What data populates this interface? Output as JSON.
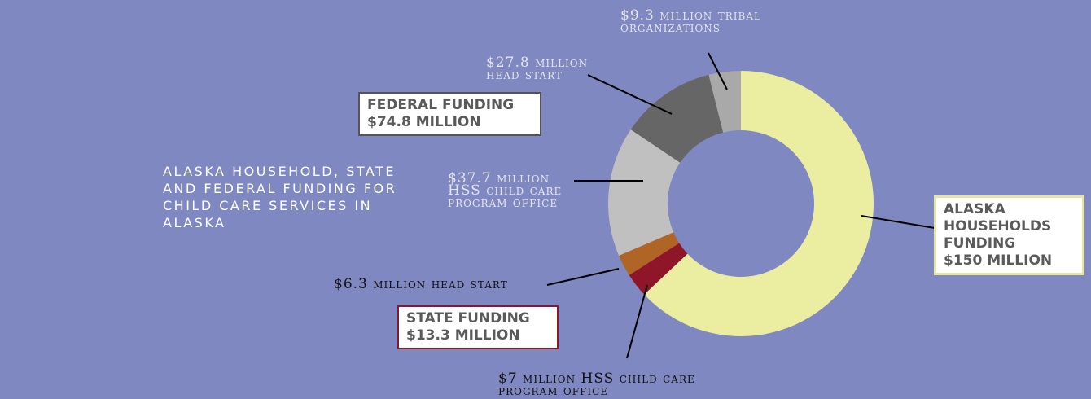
{
  "chart_data": {
    "type": "donut",
    "title": "Alaska household, state and federal funding for child care services in Alaska",
    "categories": [
      "Alaska households funding",
      "HSS child care program office",
      "head start",
      "HSS child care program office",
      "head start",
      "tribal organizations"
    ],
    "values": [
      150,
      7,
      6.3,
      37.7,
      27.8,
      9.3
    ],
    "value_labels": [
      null,
      "$7 million",
      "$6.3 million",
      "$37.7 million",
      "$27.8 million",
      "$9.3 million"
    ],
    "colors": [
      "#ebeda0",
      "#8e1628",
      "#b06425",
      "#c0c0c0",
      "#666666",
      "#a9a9a9"
    ],
    "annotations": [
      {
        "title": "FEDERAL FUNDING",
        "text": "$74.8 MILLION"
      },
      {
        "title": "STATE FUNDING",
        "text": "$13.3 MILLION"
      },
      {
        "title": "ALASKA HOUSEHOLDS FUNDING",
        "text": "$150 MILLION"
      }
    ]
  }
}
